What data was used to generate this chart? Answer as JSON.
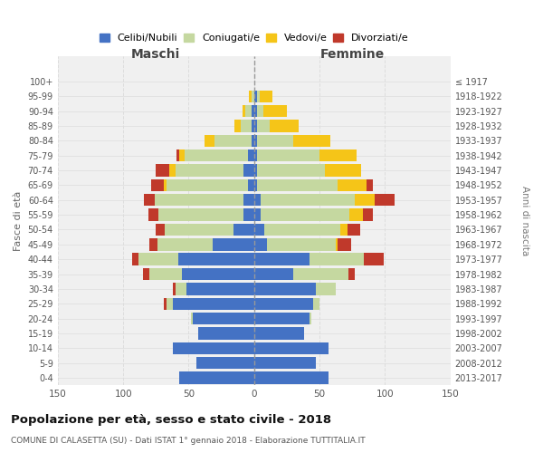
{
  "age_groups": [
    "0-4",
    "5-9",
    "10-14",
    "15-19",
    "20-24",
    "25-29",
    "30-34",
    "35-39",
    "40-44",
    "45-49",
    "50-54",
    "55-59",
    "60-64",
    "65-69",
    "70-74",
    "75-79",
    "80-84",
    "85-89",
    "90-94",
    "95-99",
    "100+"
  ],
  "birth_years": [
    "2013-2017",
    "2008-2012",
    "2003-2007",
    "1998-2002",
    "1993-1997",
    "1988-1992",
    "1983-1987",
    "1978-1982",
    "1973-1977",
    "1968-1972",
    "1963-1967",
    "1958-1962",
    "1953-1957",
    "1948-1952",
    "1943-1947",
    "1938-1942",
    "1933-1937",
    "1928-1932",
    "1923-1927",
    "1918-1922",
    "≤ 1917"
  ],
  "maschi": {
    "celibi": [
      57,
      44,
      62,
      43,
      47,
      62,
      52,
      55,
      58,
      32,
      16,
      8,
      8,
      5,
      8,
      5,
      2,
      2,
      2,
      0,
      0
    ],
    "coniugati": [
      0,
      0,
      0,
      0,
      1,
      5,
      8,
      25,
      30,
      42,
      52,
      65,
      68,
      62,
      52,
      48,
      28,
      8,
      5,
      2,
      0
    ],
    "vedovi": [
      0,
      0,
      0,
      0,
      0,
      0,
      0,
      0,
      0,
      0,
      0,
      0,
      0,
      2,
      5,
      4,
      8,
      5,
      2,
      2,
      0
    ],
    "divorziati": [
      0,
      0,
      0,
      0,
      0,
      2,
      2,
      5,
      5,
      6,
      7,
      8,
      8,
      10,
      10,
      2,
      0,
      0,
      0,
      0,
      0
    ]
  },
  "femmine": {
    "nubili": [
      57,
      47,
      57,
      38,
      42,
      45,
      47,
      30,
      42,
      10,
      8,
      5,
      5,
      2,
      2,
      2,
      2,
      2,
      2,
      2,
      0
    ],
    "coniugate": [
      0,
      0,
      0,
      0,
      2,
      5,
      15,
      42,
      42,
      52,
      58,
      68,
      72,
      62,
      52,
      48,
      28,
      10,
      5,
      2,
      0
    ],
    "vedove": [
      0,
      0,
      0,
      0,
      0,
      0,
      0,
      0,
      0,
      2,
      5,
      10,
      15,
      22,
      28,
      28,
      28,
      22,
      18,
      10,
      0
    ],
    "divorziate": [
      0,
      0,
      0,
      0,
      0,
      0,
      0,
      5,
      15,
      10,
      10,
      8,
      15,
      5,
      0,
      0,
      0,
      0,
      0,
      0,
      0
    ]
  },
  "colors": {
    "celibi": "#4472c4",
    "coniugati": "#c5d8a0",
    "vedovi": "#f5c518",
    "divorziati": "#c0392b"
  },
  "title": "Popolazione per età, sesso e stato civile - 2018",
  "subtitle": "COMUNE DI CALASETTA (SU) - Dati ISTAT 1° gennaio 2018 - Elaborazione TUTTITALIA.IT",
  "xlabel_left": "Maschi",
  "xlabel_right": "Femmine",
  "ylabel_left": "Fasce di età",
  "ylabel_right": "Anni di nascita",
  "legend_labels": [
    "Celibi/Nubili",
    "Coniugati/e",
    "Vedovi/e",
    "Divorziati/e"
  ],
  "xlim": 150,
  "bg_color": "#ffffff",
  "plot_bg": "#f0f0f0",
  "grid_color": "#cccccc"
}
